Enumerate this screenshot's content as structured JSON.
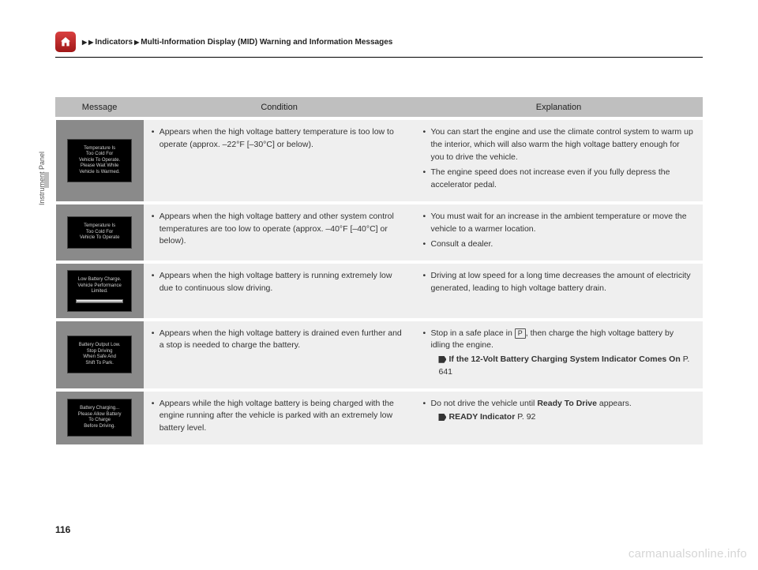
{
  "header": {
    "breadcrumb_1": "Indicators",
    "breadcrumb_2": "Multi-Information Display (MID) Warning and Information Messages"
  },
  "side_label": "Instrument Panel",
  "page_number": "116",
  "watermark": "carmanualsonline.info",
  "table": {
    "columns": {
      "c1": "Message",
      "c2": "Condition",
      "c3": "Explanation"
    },
    "col_widths": {
      "c1": 110,
      "c2": 340,
      "c3": 360
    },
    "rows": [
      {
        "display_lines": [
          "Temperature Is",
          "Too Cold For",
          "Vehicle To Operate.",
          "Please Wait While",
          "Vehicle Is Warmed."
        ],
        "condition": [
          "Appears when the high voltage battery temperature is too low to operate (approx. –22°F [–30°C] or below)."
        ],
        "explanation": [
          "You can start the engine and use the climate control system to warm up the interior, which will also warm the high voltage battery enough for you to drive the vehicle.",
          "The engine speed does not increase even if you fully depress the accelerator pedal."
        ]
      },
      {
        "display_lines": [
          "Temperature Is",
          "Too Cold For",
          "Vehicle To Operate"
        ],
        "condition": [
          "Appears when the high voltage battery and other system control temperatures are too low to operate (approx. –40°F [–40°C] or below)."
        ],
        "explanation": [
          "You must wait for an increase in the ambient temperature or move the vehicle to a warmer location.",
          "Consult a dealer."
        ]
      },
      {
        "display_lines": [
          "Low Battery Charge.",
          "Vehicle Performance",
          "Limited."
        ],
        "has_bar": true,
        "condition": [
          "Appears when the high voltage battery is running extremely low due to continuous slow driving."
        ],
        "explanation": [
          "Driving at low speed for a long time decreases the amount of electricity generated, leading to high voltage battery drain."
        ]
      },
      {
        "display_lines": [
          "Battery Output Low.",
          "Stop Driving",
          "When Safe And",
          "Shift To Park."
        ],
        "condition": [
          "Appears when the high voltage battery is drained even further and a stop is needed to charge the battery."
        ],
        "explanation_html": "park",
        "explanation_pre": "Stop in a safe place in ",
        "explanation_post": ", then charge the high voltage battery by idling the engine.",
        "xref_label": "If the 12-Volt Battery Charging System Indicator Comes On",
        "xref_page": "P. 641"
      },
      {
        "display_lines": [
          "Battery Charging...",
          "Please Allow Battery",
          "To Charge",
          "Before Driving."
        ],
        "condition": [
          "Appears while the high voltage battery is being charged with the engine running after the vehicle is parked with an extremely low battery level."
        ],
        "explanation_html": "ready",
        "explanation_pre": "Do not drive the vehicle until ",
        "explanation_bold": "Ready To Drive",
        "explanation_post": " appears.",
        "xref_label": "READY Indicator",
        "xref_page": "P. 92"
      }
    ]
  }
}
